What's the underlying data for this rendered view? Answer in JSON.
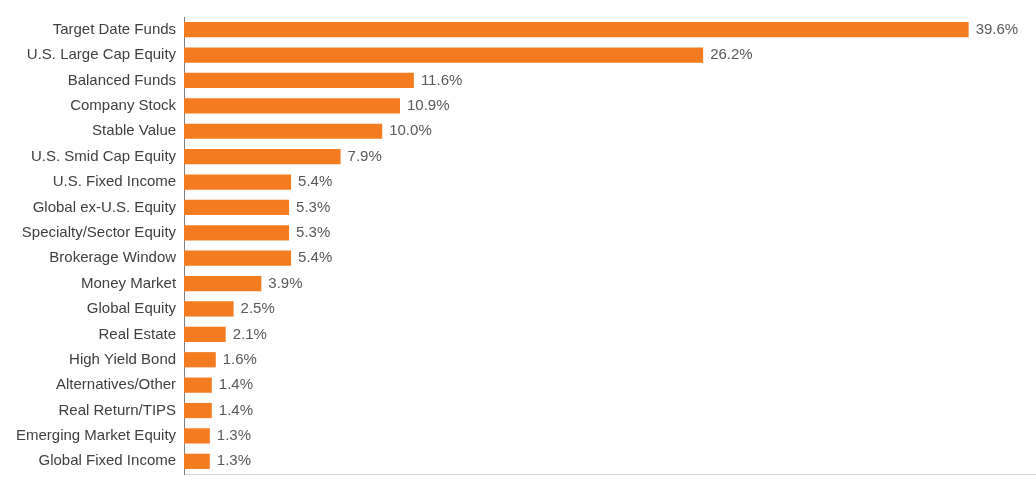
{
  "chart_data": {
    "type": "bar",
    "orientation": "horizontal",
    "categories": [
      "Target Date Funds",
      "U.S. Large Cap Equity",
      "Balanced Funds",
      "Company Stock",
      "Stable Value",
      "U.S. Smid Cap Equity",
      "U.S. Fixed Income",
      "Global ex-U.S. Equity",
      "Specialty/Sector Equity",
      "Brokerage Window",
      "Money Market",
      "Global Equity",
      "Real Estate",
      "High Yield Bond",
      "Alternatives/Other",
      "Real Return/TIPS",
      "Emerging Market Equity",
      "Global Fixed Income"
    ],
    "values": [
      39.6,
      26.2,
      11.6,
      10.9,
      10.0,
      7.9,
      5.4,
      5.3,
      5.3,
      5.4,
      3.9,
      2.5,
      2.1,
      1.6,
      1.4,
      1.4,
      1.3,
      1.3
    ],
    "value_labels": [
      "39.6%",
      "26.2%",
      "11.6%",
      "10.9%",
      "10.0%",
      "7.9%",
      "5.4%",
      "5.3%",
      "5.3%",
      "5.4%",
      "3.9%",
      "2.5%",
      "2.1%",
      "1.6%",
      "1.4%",
      "1.4%",
      "1.3%",
      "1.3%"
    ],
    "color": "#f47b20",
    "xlim": [
      0,
      43
    ],
    "grid": false,
    "data_labels": true,
    "tick_labels": "y"
  }
}
